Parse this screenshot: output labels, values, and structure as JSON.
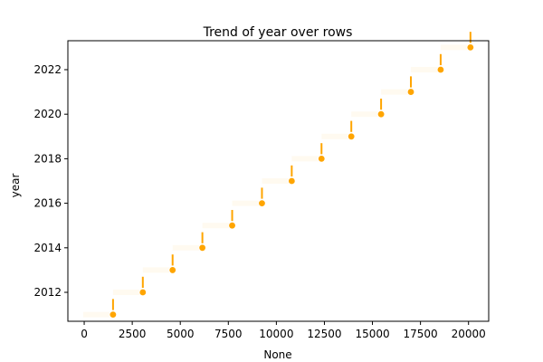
{
  "chart_data": {
    "type": "line",
    "title": "Trend of year over rows",
    "xlabel": "None",
    "ylabel": "year",
    "xlim": [
      -850,
      21050
    ],
    "ylim": [
      2010.7,
      2023.3
    ],
    "x_ticks": [
      0,
      2500,
      5000,
      7500,
      10000,
      12500,
      15000,
      17500,
      20000
    ],
    "x_tick_labels": [
      "0",
      "2500",
      "5000",
      "7500",
      "10000",
      "12500",
      "15000",
      "17500",
      "20000"
    ],
    "y_ticks": [
      2012,
      2014,
      2016,
      2018,
      2020,
      2022
    ],
    "y_tick_labels": [
      "2012",
      "2014",
      "2016",
      "2018",
      "2020",
      "2022"
    ],
    "grid": false,
    "series": [
      {
        "color": "#ffa500",
        "points": [
          {
            "x": 1500,
            "y": 2011
          },
          {
            "x": 3050,
            "y": 2012
          },
          {
            "x": 4600,
            "y": 2013
          },
          {
            "x": 6150,
            "y": 2014
          },
          {
            "x": 7700,
            "y": 2015
          },
          {
            "x": 9250,
            "y": 2016
          },
          {
            "x": 10800,
            "y": 2017
          },
          {
            "x": 12350,
            "y": 2018
          },
          {
            "x": 13900,
            "y": 2019
          },
          {
            "x": 15450,
            "y": 2020
          },
          {
            "x": 17000,
            "y": 2021
          },
          {
            "x": 18550,
            "y": 2022
          },
          {
            "x": 20100,
            "y": 2023
          }
        ]
      }
    ]
  }
}
